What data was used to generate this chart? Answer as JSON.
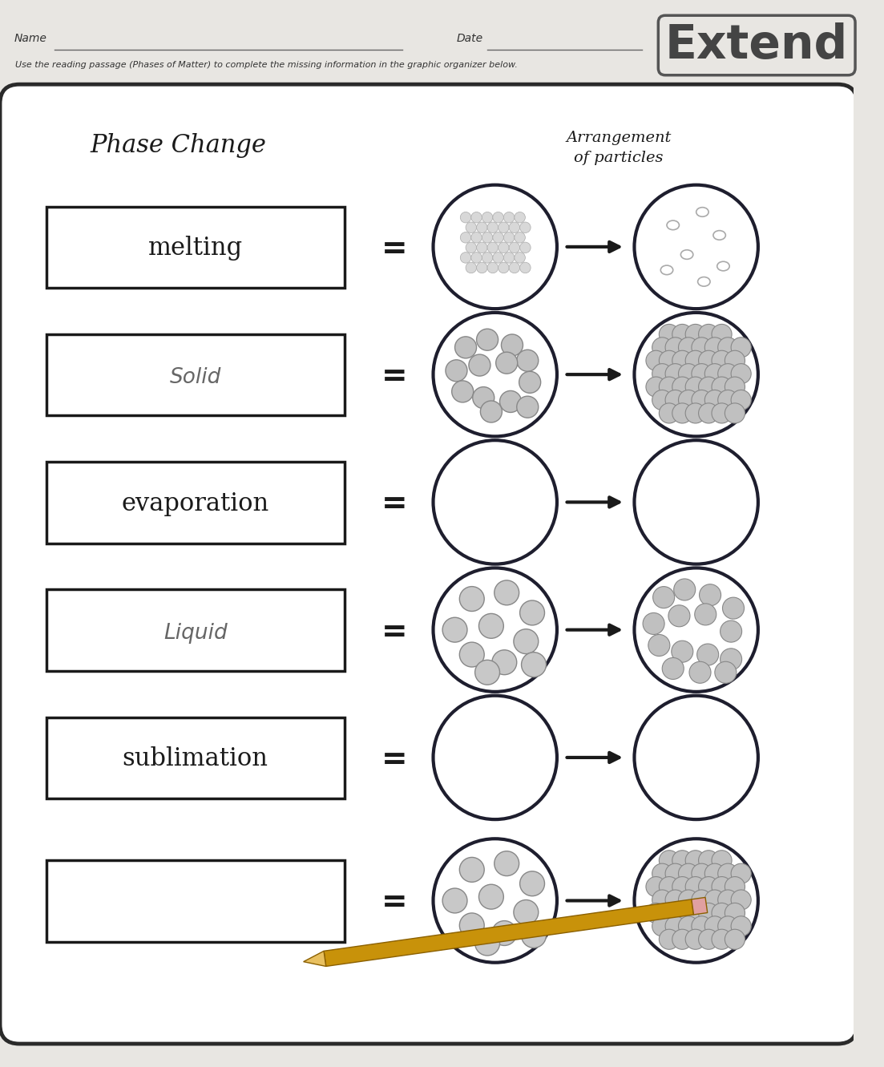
{
  "subtitle": "Use the reading passage (Phases of Matter) to complete the missing information in the graphic organizer below.",
  "header_left": "Phase Change",
  "header_right": "Arrangement\nof particles",
  "rows": [
    {
      "label": "melting",
      "label_style": "printed",
      "left_dots": "small_clustered",
      "right_dots": "sparse_few"
    },
    {
      "label": "Solid",
      "label_style": "handwritten",
      "left_dots": "medium_spread",
      "right_dots": "large_packed"
    },
    {
      "label": "evaporation",
      "label_style": "printed",
      "left_dots": "none",
      "right_dots": "none"
    },
    {
      "label": "Liquid",
      "label_style": "handwritten",
      "left_dots": "liquid_loose",
      "right_dots": "liquid_more"
    },
    {
      "label": "sublimation",
      "label_style": "printed",
      "left_dots": "none",
      "right_dots": "none"
    },
    {
      "label": "",
      "label_style": "empty",
      "left_dots": "liquid_loose",
      "right_dots": "large_packed"
    }
  ],
  "paper_color": "#e8e6e2",
  "box_bg": "#f8f8f8",
  "dot_fill": "#c8c8c8",
  "dot_edge": "#888888"
}
